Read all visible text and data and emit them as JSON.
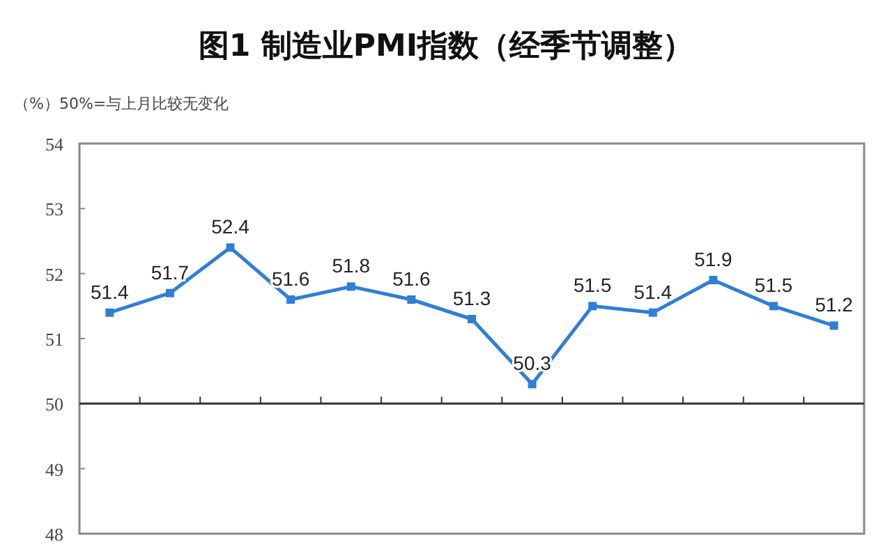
{
  "chart_data": {
    "type": "line",
    "title": "图1 制造业PMI指数（经季节调整）",
    "ylabel": "（%）50%=与上月比较无变化",
    "categories": [
      null,
      null,
      null,
      null,
      null,
      null,
      null,
      null,
      null,
      null,
      null,
      null,
      null
    ],
    "series": [
      {
        "color": "#2f7ed8",
        "values": [
          51.4,
          51.7,
          52.4,
          51.6,
          51.8,
          51.6,
          51.3,
          50.3,
          51.5,
          51.4,
          51.9,
          51.5,
          51.2
        ]
      }
    ],
    "ylim": [
      48,
      54
    ],
    "yticks": [
      48,
      49,
      50,
      51,
      52,
      53,
      54
    ],
    "grid": false,
    "marker": "square",
    "line_style": "solid",
    "data_labels": true,
    "ref_lines": [
      {
        "axis": "y",
        "value": 50,
        "color": "#333333"
      }
    ]
  }
}
